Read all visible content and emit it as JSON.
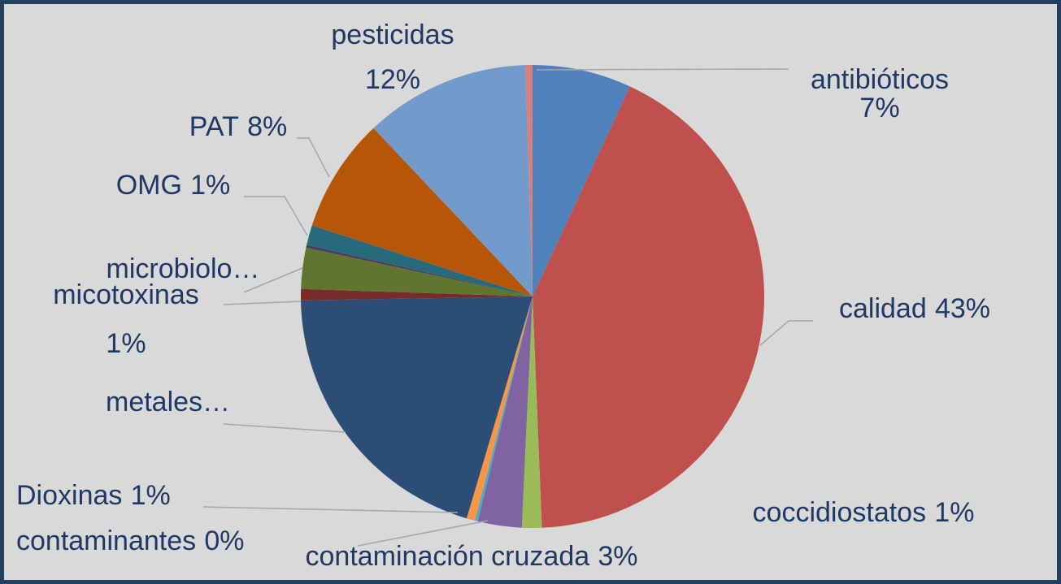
{
  "chart_data": {
    "type": "pie",
    "categories": [
      "antibióticos",
      "calidad",
      "coccidiostatos",
      "contaminación cruzada",
      "contaminantes",
      "Dioxinas",
      "metales…",
      "micotoxinas",
      "microbiolo…",
      null,
      "OMG",
      "PAT",
      "pesticidas",
      null
    ],
    "values": [
      7,
      43,
      1.4,
      3.1,
      0.2,
      0.6,
      20.4,
      0.8,
      2.9,
      0.2,
      1.4,
      8.1,
      11.7,
      0.5
    ],
    "value_labels": [
      "7%",
      "43%",
      "1%",
      "3%",
      "0%",
      "1%",
      null,
      "1%",
      null,
      null,
      "1%",
      "8%",
      "12%",
      null
    ],
    "colors": [
      "#4f81bd",
      "#c0504d",
      "#9bbb59",
      "#8064a2",
      "#4bacc6",
      "#f79646",
      "#2c4d75",
      "#772c2a",
      "#5f7530",
      "#4d3b62",
      "#276a7c",
      "#b65708",
      "#729aca",
      "#d9807e"
    ]
  }
}
